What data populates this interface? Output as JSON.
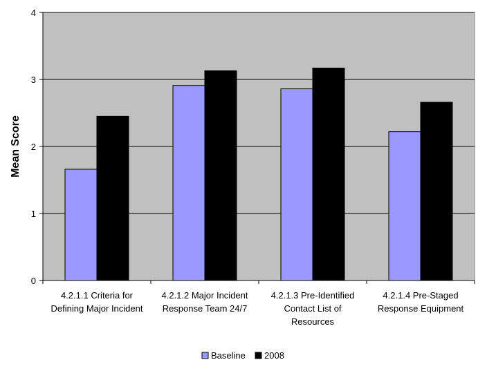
{
  "chart_data": {
    "type": "bar",
    "title": "",
    "xlabel": "",
    "ylabel": "Mean Score",
    "ylim": [
      0,
      4
    ],
    "yticks": [
      "0",
      "1",
      "2",
      "3",
      "4"
    ],
    "grid": true,
    "legend_position": "bottom",
    "categories": [
      [
        "4.2.1.1 Criteria for",
        "Defining Major Incident"
      ],
      [
        "4.2.1.2 Major Incident",
        "Response Team 24/7"
      ],
      [
        "4.2.1.3 Pre-Identified",
        "Contact List of",
        "Resources"
      ],
      [
        "4.2.1.4 Pre-Staged",
        "Response Equipment"
      ]
    ],
    "series": [
      {
        "name": "Baseline",
        "color": "#9999ff",
        "values": [
          1.66,
          2.91,
          2.86,
          2.22
        ]
      },
      {
        "name": "2008",
        "color": "#000000",
        "values": [
          2.45,
          3.13,
          3.17,
          2.66
        ]
      }
    ],
    "plot_background": "#c0c0c0"
  }
}
